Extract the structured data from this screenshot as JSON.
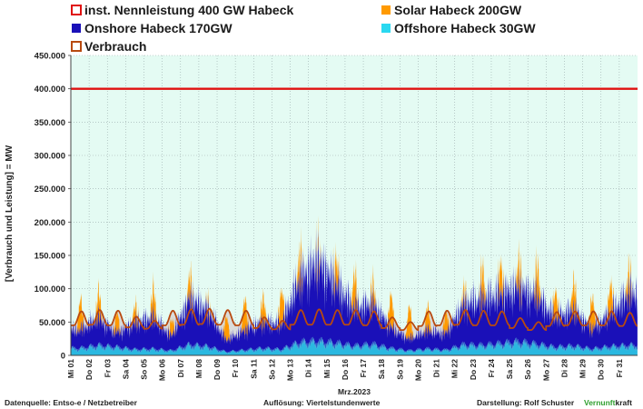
{
  "chart_data": {
    "type": "area",
    "legend": {
      "nennleistung": "inst. Nennleistung 400 GW Habeck",
      "solar": "Solar Habeck 200GW",
      "onshore": "Onshore Habeck 170GW",
      "offshore": "Offshore Habeck 30GW",
      "verbrauch": "Verbrauch"
    },
    "colors": {
      "nennleistung": "#e01010",
      "solar": "#ff9a00",
      "onshore": "#1a10b8",
      "offshore": "#2ab8e0",
      "verbrauch": "#b84a10",
      "plot_background": "#e4fbf3"
    },
    "ylabel": "[Verbrauch und Leistung] = MW",
    "xlabel": "Mrz.2023",
    "ylim": [
      0,
      450000
    ],
    "yticks": [
      "0",
      "50.000",
      "100.000",
      "150.000",
      "200.000",
      "250.000",
      "300.000",
      "350.000",
      "400.000",
      "450.000"
    ],
    "ytick_values": [
      0,
      50000,
      100000,
      150000,
      200000,
      250000,
      300000,
      350000,
      400000,
      450000
    ],
    "x_categories": [
      "Mi 01",
      "Do 02",
      "Fr 03",
      "Sa 04",
      "So 05",
      "Mo 06",
      "Di 07",
      "Mi 08",
      "Do 09",
      "Fr 10",
      "Sa 11",
      "So 12",
      "Mo 13",
      "Di 14",
      "Mi 15",
      "Do 16",
      "Fr 17",
      "Sa 18",
      "So 19",
      "Mo 20",
      "Di 21",
      "Mi 22",
      "Do 23",
      "Fr 24",
      "Sa 25",
      "So 26",
      "Mo 27",
      "Di 28",
      "Mi 29",
      "Do 30",
      "Fr 31"
    ],
    "nennleistung_value": 400000,
    "daily": {
      "offshore_avg": [
        12000,
        17000,
        14000,
        10000,
        11000,
        8000,
        18000,
        15000,
        6000,
        9000,
        12000,
        10000,
        22000,
        24000,
        21000,
        16000,
        19000,
        12000,
        8000,
        11000,
        9000,
        18000,
        17000,
        20000,
        23000,
        19000,
        14000,
        16000,
        11000,
        15000,
        17000
      ],
      "onshore_avg": [
        28000,
        42000,
        22000,
        40000,
        48000,
        22000,
        70000,
        55000,
        18000,
        30000,
        40000,
        38000,
        95000,
        120000,
        90000,
        58000,
        62000,
        32000,
        18000,
        28000,
        25000,
        62000,
        70000,
        75000,
        82000,
        72000,
        45000,
        55000,
        30000,
        50000,
        78000
      ],
      "solar_peak": [
        45000,
        38000,
        28000,
        25000,
        42000,
        22000,
        35000,
        12000,
        35000,
        48000,
        38000,
        50000,
        40000,
        20000,
        38000,
        50000,
        30000,
        48000,
        48000,
        35000,
        30000,
        20000,
        45000,
        45000,
        42000,
        50000,
        40000,
        45000,
        48000,
        45000,
        35000
      ],
      "verbrauch_midday": [
        66000,
        68000,
        67000,
        58000,
        52000,
        67000,
        69000,
        70000,
        68000,
        67000,
        57000,
        52000,
        68000,
        69000,
        68000,
        68000,
        66000,
        57000,
        50000,
        66000,
        67000,
        68000,
        67000,
        66000,
        56000,
        50000,
        65000,
        66000,
        66000,
        66000,
        64000
      ],
      "verbrauch_night": [
        45000,
        46000,
        45000,
        42000,
        40000,
        45000,
        46000,
        47000,
        46000,
        45000,
        41000,
        39000,
        46000,
        46000,
        46000,
        46000,
        45000,
        41000,
        38000,
        44000,
        45000,
        46000,
        45000,
        45000,
        41000,
        38000,
        44000,
        45000,
        45000,
        45000,
        44000
      ]
    }
  },
  "footer": {
    "source": "Datenquelle: Entso-e  / Netzbetreiber",
    "resolution": "Auflösung: Viertelstundenwerte",
    "author": "Darstellung:  Rolf Schuster",
    "brand_a": "Vernunft",
    "brand_b": "kraft"
  }
}
